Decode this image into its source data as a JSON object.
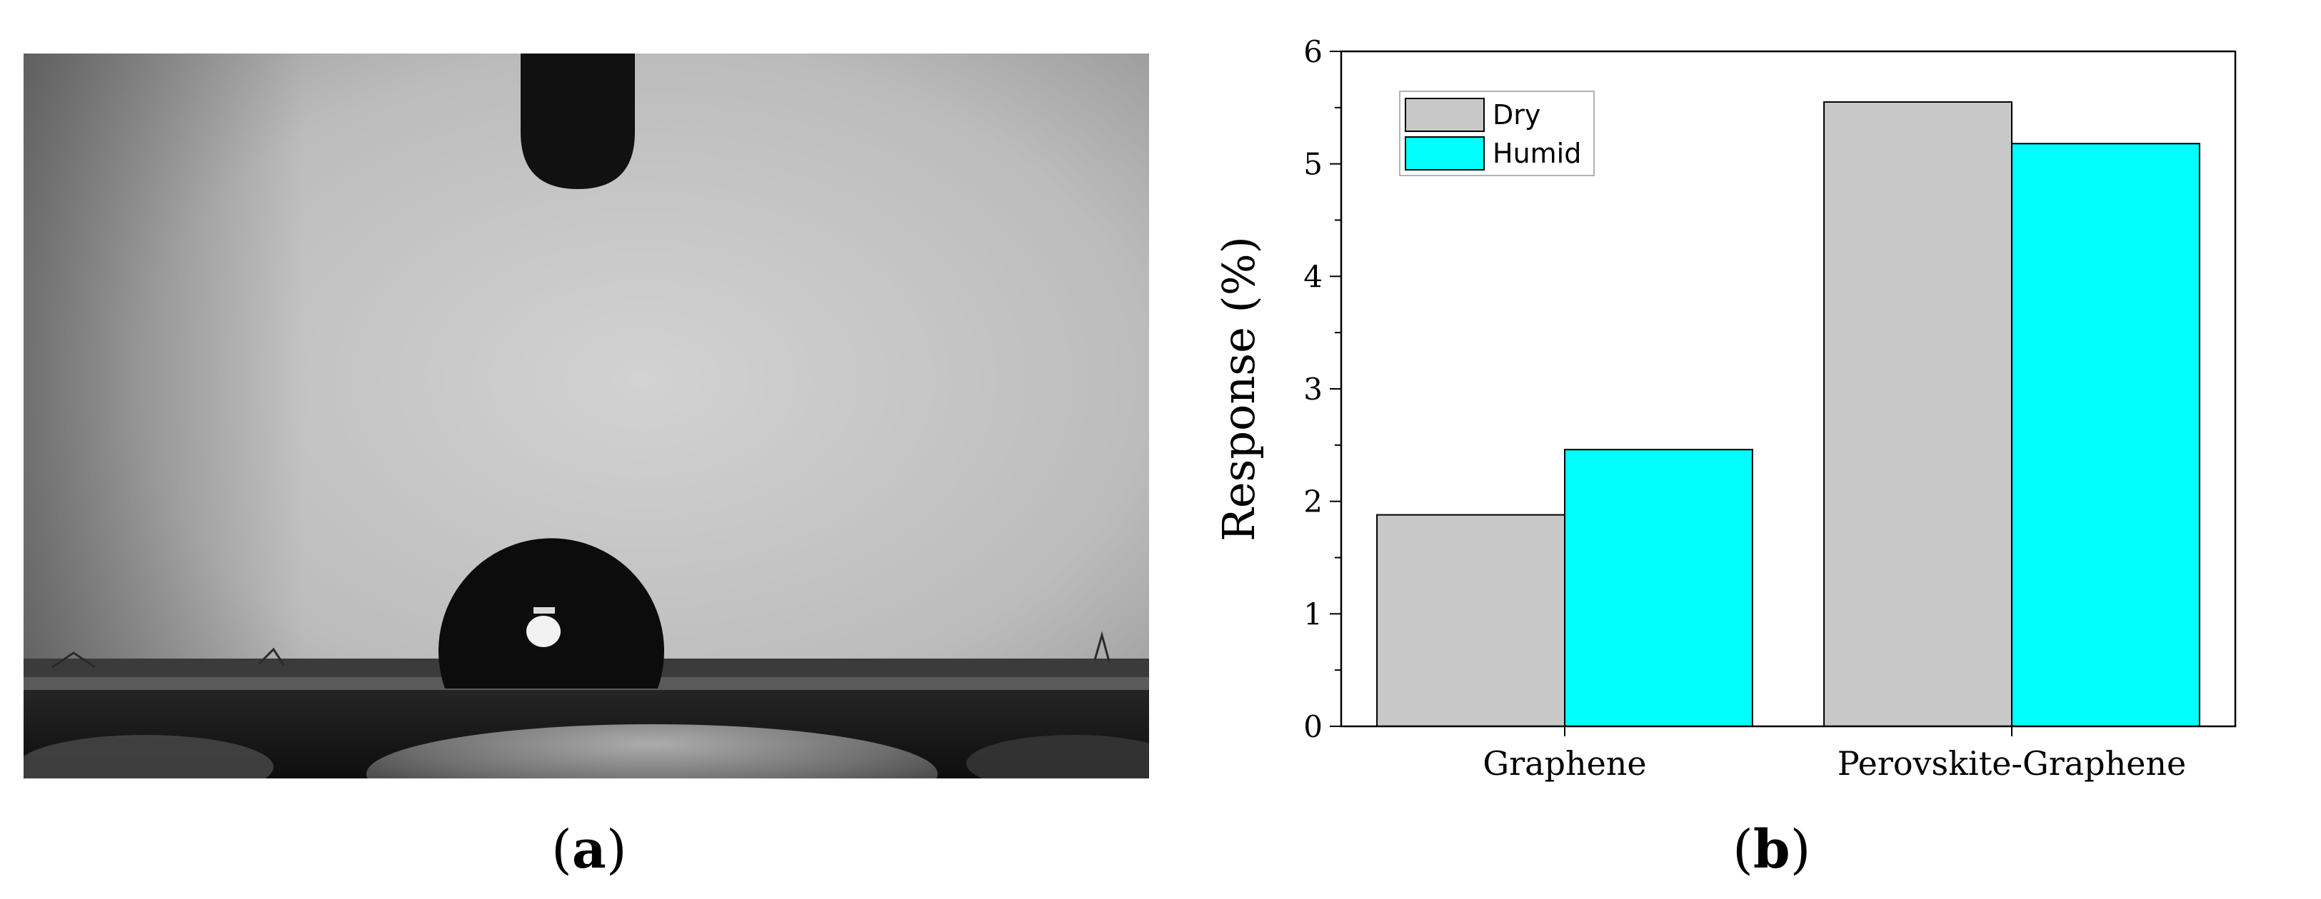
{
  "figure": {
    "panel_a": {
      "open": "(",
      "letter": "a",
      "close": ")",
      "content": "contact-angle-droplet-photograph"
    },
    "panel_b": {
      "open": "(",
      "letter": "b",
      "close": ")"
    }
  },
  "chart_data": {
    "type": "bar",
    "categories": [
      "Graphene",
      "Perovskite-Graphene"
    ],
    "series": [
      {
        "name": "Dry",
        "values": [
          1.88,
          5.55
        ],
        "color": "#c8c8c8"
      },
      {
        "name": "Humid",
        "values": [
          2.46,
          5.18
        ],
        "color": "#00ffff"
      }
    ],
    "title": "",
    "xlabel": "",
    "ylabel": "Response (%)",
    "ylim": [
      0,
      6
    ],
    "yticks": [
      0,
      1,
      2,
      3,
      4,
      5,
      6
    ],
    "grid": false,
    "legend_position": "top-left",
    "bar_edge_color": "#000000"
  }
}
